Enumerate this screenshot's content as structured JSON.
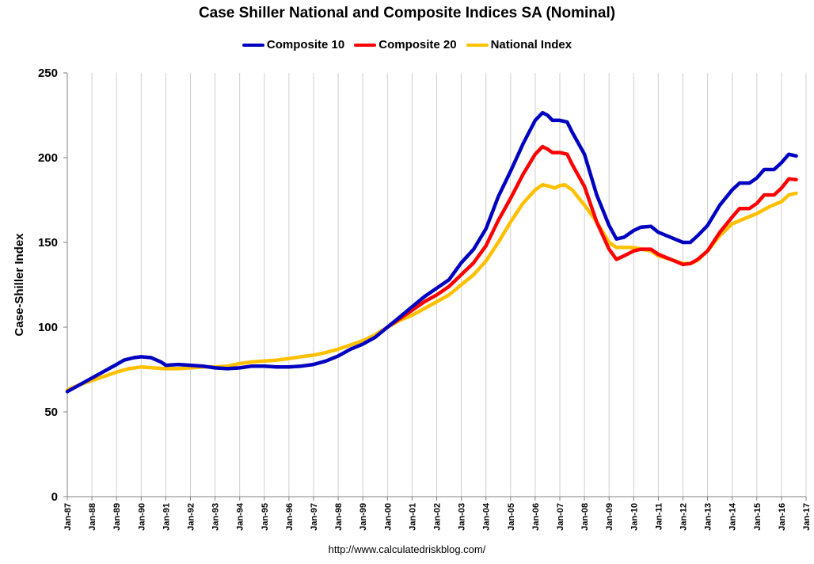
{
  "chart_data": {
    "type": "line",
    "title": "Case Shiller National and Composite Indices SA (Nominal)",
    "ylabel": "Case-Shiller Index",
    "xlabel": "",
    "ylim": [
      0,
      250
    ],
    "yticks": [
      0,
      50,
      100,
      150,
      200,
      250
    ],
    "xlim": [
      1987,
      2017
    ],
    "xticks": [
      {
        "value": 1987,
        "label": "Jan-87"
      },
      {
        "value": 1988,
        "label": "Jan-88"
      },
      {
        "value": 1989,
        "label": "Jan-89"
      },
      {
        "value": 1990,
        "label": "Jan-90"
      },
      {
        "value": 1991,
        "label": "Jan-91"
      },
      {
        "value": 1992,
        "label": "Jan-92"
      },
      {
        "value": 1993,
        "label": "Jan-93"
      },
      {
        "value": 1994,
        "label": "Jan-94"
      },
      {
        "value": 1995,
        "label": "Jan-95"
      },
      {
        "value": 1996,
        "label": "Jan-96"
      },
      {
        "value": 1997,
        "label": "Jan-97"
      },
      {
        "value": 1998,
        "label": "Jan-98"
      },
      {
        "value": 1999,
        "label": "Jan-99"
      },
      {
        "value": 2000,
        "label": "Jan-00"
      },
      {
        "value": 2001,
        "label": "Jan-01"
      },
      {
        "value": 2002,
        "label": "Jan-02"
      },
      {
        "value": 2003,
        "label": "Jan-03"
      },
      {
        "value": 2004,
        "label": "Jan-04"
      },
      {
        "value": 2005,
        "label": "Jan-05"
      },
      {
        "value": 2006,
        "label": "Jan-06"
      },
      {
        "value": 2007,
        "label": "Jan-07"
      },
      {
        "value": 2008,
        "label": "Jan-08"
      },
      {
        "value": 2009,
        "label": "Jan-09"
      },
      {
        "value": 2010,
        "label": "Jan-10"
      },
      {
        "value": 2011,
        "label": "Jan-11"
      },
      {
        "value": 2012,
        "label": "Jan-12"
      },
      {
        "value": 2013,
        "label": "Jan-13"
      },
      {
        "value": 2014,
        "label": "Jan-14"
      },
      {
        "value": 2015,
        "label": "Jan-15"
      },
      {
        "value": 2016,
        "label": "Jan-16"
      },
      {
        "value": 2017,
        "label": "Jan-17"
      }
    ],
    "grid": "vertical",
    "legend_position": "top-center",
    "series": [
      {
        "name": "Composite 10",
        "color": "#0000C0",
        "points": [
          [
            1987.0,
            62
          ],
          [
            1987.5,
            66
          ],
          [
            1988.0,
            70
          ],
          [
            1988.5,
            74
          ],
          [
            1989.0,
            78
          ],
          [
            1989.3,
            80.5
          ],
          [
            1989.7,
            82
          ],
          [
            1990.0,
            82.5
          ],
          [
            1990.4,
            82
          ],
          [
            1990.8,
            79.5
          ],
          [
            1991.0,
            77.5
          ],
          [
            1991.5,
            78
          ],
          [
            1992.0,
            77.5
          ],
          [
            1992.5,
            77
          ],
          [
            1993.0,
            76
          ],
          [
            1993.5,
            75.5
          ],
          [
            1994.0,
            76
          ],
          [
            1994.5,
            77
          ],
          [
            1995.0,
            77
          ],
          [
            1995.5,
            76.5
          ],
          [
            1996.0,
            76.5
          ],
          [
            1996.5,
            77
          ],
          [
            1997.0,
            78
          ],
          [
            1997.5,
            80
          ],
          [
            1998.0,
            83
          ],
          [
            1998.5,
            87
          ],
          [
            1999.0,
            90
          ],
          [
            1999.5,
            94
          ],
          [
            2000.0,
            100
          ],
          [
            2000.5,
            106
          ],
          [
            2001.0,
            112
          ],
          [
            2001.5,
            118
          ],
          [
            2002.0,
            123
          ],
          [
            2002.5,
            128
          ],
          [
            2003.0,
            138
          ],
          [
            2003.5,
            146
          ],
          [
            2004.0,
            158
          ],
          [
            2004.5,
            177
          ],
          [
            2005.0,
            192
          ],
          [
            2005.5,
            208
          ],
          [
            2006.0,
            222
          ],
          [
            2006.3,
            226.5
          ],
          [
            2006.5,
            225
          ],
          [
            2006.7,
            222
          ],
          [
            2007.0,
            222
          ],
          [
            2007.3,
            221
          ],
          [
            2007.5,
            215
          ],
          [
            2008.0,
            202
          ],
          [
            2008.5,
            178
          ],
          [
            2009.0,
            160
          ],
          [
            2009.3,
            152
          ],
          [
            2009.6,
            153
          ],
          [
            2010.0,
            157
          ],
          [
            2010.3,
            159
          ],
          [
            2010.7,
            159.5
          ],
          [
            2011.0,
            156
          ],
          [
            2011.5,
            153
          ],
          [
            2012.0,
            150
          ],
          [
            2012.3,
            150
          ],
          [
            2012.6,
            154
          ],
          [
            2013.0,
            160
          ],
          [
            2013.5,
            172
          ],
          [
            2014.0,
            181
          ],
          [
            2014.3,
            185
          ],
          [
            2014.7,
            185
          ],
          [
            2015.0,
            188
          ],
          [
            2015.3,
            193
          ],
          [
            2015.7,
            193
          ],
          [
            2016.0,
            197
          ],
          [
            2016.3,
            202
          ],
          [
            2016.6,
            201
          ]
        ]
      },
      {
        "name": "Composite 20",
        "color": "#FF0000",
        "points": [
          [
            2000.0,
            100
          ],
          [
            2000.5,
            105
          ],
          [
            2001.0,
            110
          ],
          [
            2001.5,
            115
          ],
          [
            2002.0,
            119
          ],
          [
            2002.5,
            124
          ],
          [
            2003.0,
            131
          ],
          [
            2003.5,
            138
          ],
          [
            2004.0,
            148
          ],
          [
            2004.5,
            163
          ],
          [
            2005.0,
            176
          ],
          [
            2005.5,
            190
          ],
          [
            2006.0,
            202
          ],
          [
            2006.3,
            206.5
          ],
          [
            2006.5,
            205
          ],
          [
            2006.7,
            203
          ],
          [
            2007.0,
            203
          ],
          [
            2007.3,
            202
          ],
          [
            2007.5,
            196
          ],
          [
            2008.0,
            183
          ],
          [
            2008.5,
            162
          ],
          [
            2009.0,
            146
          ],
          [
            2009.3,
            140
          ],
          [
            2009.6,
            142
          ],
          [
            2010.0,
            145
          ],
          [
            2010.3,
            146
          ],
          [
            2010.7,
            146
          ],
          [
            2011.0,
            143
          ],
          [
            2011.5,
            140
          ],
          [
            2012.0,
            137
          ],
          [
            2012.3,
            137.5
          ],
          [
            2012.6,
            140
          ],
          [
            2013.0,
            145
          ],
          [
            2013.5,
            156
          ],
          [
            2014.0,
            165
          ],
          [
            2014.3,
            170
          ],
          [
            2014.7,
            170
          ],
          [
            2015.0,
            173
          ],
          [
            2015.3,
            178
          ],
          [
            2015.7,
            178
          ],
          [
            2016.0,
            182
          ],
          [
            2016.3,
            187.5
          ],
          [
            2016.6,
            187
          ]
        ]
      },
      {
        "name": "National Index",
        "color": "#FFC000",
        "points": [
          [
            1987.0,
            63
          ],
          [
            1987.5,
            66
          ],
          [
            1988.0,
            68.5
          ],
          [
            1988.5,
            71
          ],
          [
            1989.0,
            73.5
          ],
          [
            1989.5,
            75.5
          ],
          [
            1990.0,
            76.5
          ],
          [
            1990.5,
            76
          ],
          [
            1991.0,
            75.5
          ],
          [
            1991.5,
            75.5
          ],
          [
            1992.0,
            76
          ],
          [
            1992.5,
            76.5
          ],
          [
            1993.0,
            76.5
          ],
          [
            1993.5,
            77
          ],
          [
            1994.0,
            78.5
          ],
          [
            1994.5,
            79.5
          ],
          [
            1995.0,
            80
          ],
          [
            1995.5,
            80.5
          ],
          [
            1996.0,
            81.5
          ],
          [
            1996.5,
            82.5
          ],
          [
            1997.0,
            83.5
          ],
          [
            1997.5,
            85
          ],
          [
            1998.0,
            87
          ],
          [
            1998.5,
            89.5
          ],
          [
            1999.0,
            92
          ],
          [
            1999.5,
            95.5
          ],
          [
            2000.0,
            100
          ],
          [
            2000.5,
            104
          ],
          [
            2001.0,
            107
          ],
          [
            2001.5,
            111
          ],
          [
            2002.0,
            115
          ],
          [
            2002.5,
            119
          ],
          [
            2003.0,
            125
          ],
          [
            2003.5,
            131
          ],
          [
            2004.0,
            139
          ],
          [
            2004.5,
            150
          ],
          [
            2005.0,
            162
          ],
          [
            2005.5,
            173
          ],
          [
            2006.0,
            181
          ],
          [
            2006.3,
            184
          ],
          [
            2006.6,
            183
          ],
          [
            2006.8,
            182
          ],
          [
            2007.0,
            183.5
          ],
          [
            2007.2,
            184
          ],
          [
            2007.5,
            181
          ],
          [
            2008.0,
            172
          ],
          [
            2008.5,
            162
          ],
          [
            2009.0,
            150
          ],
          [
            2009.3,
            147
          ],
          [
            2009.6,
            147
          ],
          [
            2010.0,
            147
          ],
          [
            2010.3,
            146
          ],
          [
            2010.7,
            145
          ],
          [
            2011.0,
            142
          ],
          [
            2011.5,
            140
          ],
          [
            2012.0,
            137.5
          ],
          [
            2012.3,
            137.5
          ],
          [
            2012.6,
            139.5
          ],
          [
            2013.0,
            145
          ],
          [
            2013.5,
            154
          ],
          [
            2014.0,
            161
          ],
          [
            2014.5,
            164
          ],
          [
            2015.0,
            167
          ],
          [
            2015.5,
            171
          ],
          [
            2016.0,
            174
          ],
          [
            2016.3,
            178
          ],
          [
            2016.6,
            179
          ]
        ]
      }
    ]
  },
  "footer": "http://www.calculatedriskblog.com/"
}
